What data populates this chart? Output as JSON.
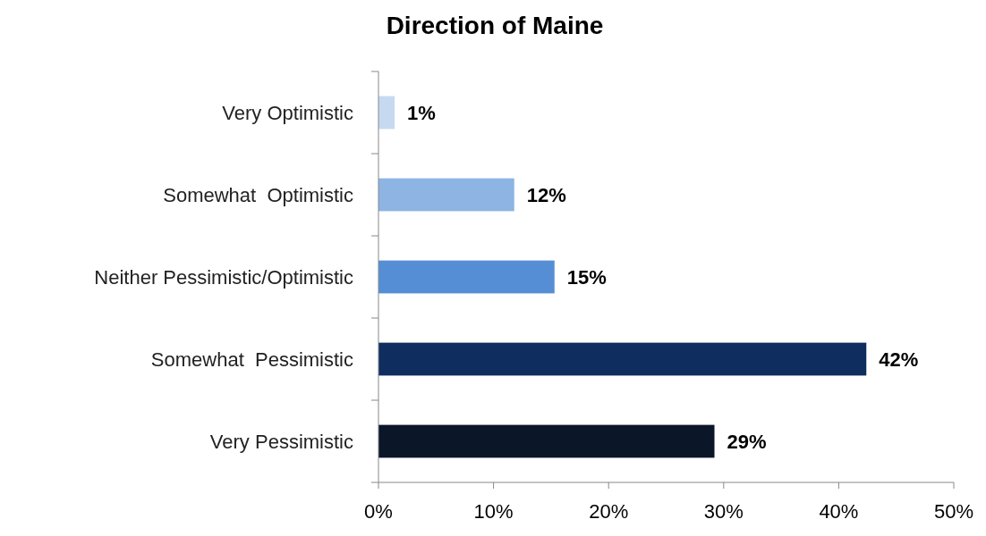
{
  "chart_data": {
    "type": "bar",
    "orientation": "horizontal",
    "title": "Direction of Maine",
    "categories": [
      "Very Optimistic",
      "Somewhat  Optimistic",
      "Neither Pessimistic/Optimistic",
      "Somewhat  Pessimistic",
      "Very Pessimistic"
    ],
    "values": [
      1.4,
      11.8,
      15.3,
      42.4,
      29.2
    ],
    "value_labels": [
      "1%",
      "12%",
      "15%",
      "42%",
      "29%"
    ],
    "colors": [
      "#c6d9f1",
      "#8db4e2",
      "#558ed5",
      "#0f2d5f",
      "#0b1629"
    ],
    "xlim": [
      0,
      50
    ],
    "xticks": [
      {
        "value": 0,
        "label": "0%"
      },
      {
        "value": 10,
        "label": "10%"
      },
      {
        "value": 20,
        "label": "20%"
      },
      {
        "value": 30,
        "label": "30%"
      },
      {
        "value": 40,
        "label": "40%"
      },
      {
        "value": 50,
        "label": "50%"
      }
    ]
  }
}
